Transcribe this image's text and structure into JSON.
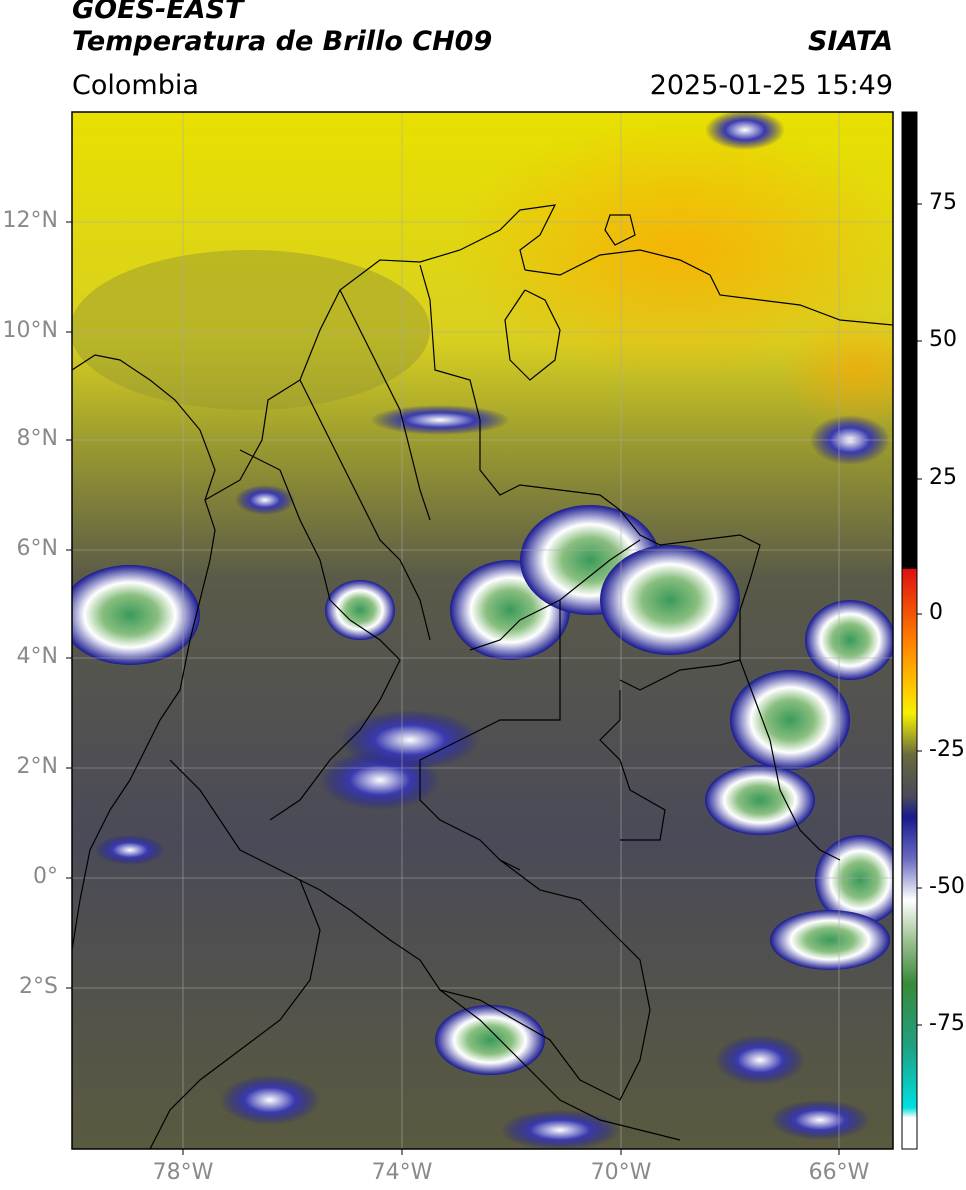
{
  "header": {
    "satellite": "GOES-EAST",
    "product": "Temperatura de Brillo CH09",
    "region": "Colombia",
    "agency": "SIATA",
    "datetime": "2025-01-25 15:49"
  },
  "map_axes": {
    "lat_ticks": [
      "12°N",
      "10°N",
      "8°N",
      "6°N",
      "4°N",
      "2°N",
      "0°",
      "2°S"
    ],
    "lon_ticks": [
      "78°W",
      "74°W",
      "70°W",
      "66°W"
    ]
  },
  "colorbar": {
    "ticks": [
      "75",
      "50",
      "25",
      "0",
      "-25",
      "-50",
      "-75"
    ],
    "colors": {
      "hot_top": "#000000",
      "red": "#e01010",
      "orange": "#ffa500",
      "yellow": "#f5f000",
      "olive": "#8a8a30",
      "gray": "#4a4a5a",
      "blue": "#1a1a90",
      "white": "#ffffff",
      "green": "#3a8a3a",
      "teal": "#20c0a0",
      "cyan": "#00e0e0"
    }
  }
}
